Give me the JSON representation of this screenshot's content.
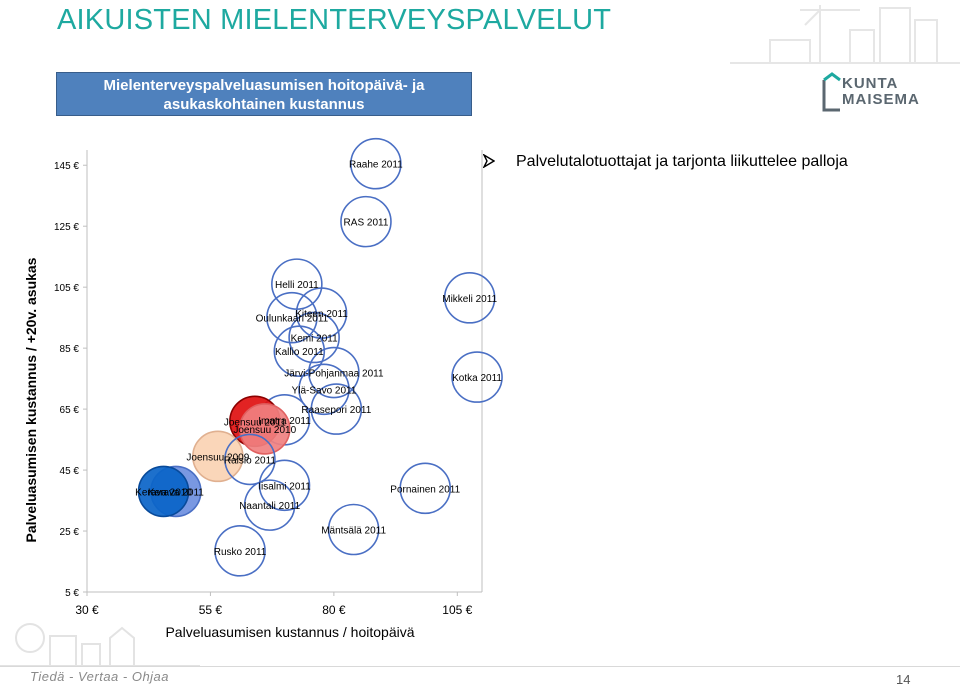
{
  "title": "AIKUISTEN MIELENTERVEYSPALVELUT",
  "subtitle": {
    "line1": "Mielenterveyspalveluasumisen hoitopäivä- ja",
    "line2": "asukaskohtainen kustannus"
  },
  "logo": {
    "line1": "KUNTA",
    "line2": "MAISEMA"
  },
  "bullet": {
    "icon": "arrow-bullet-icon",
    "text": "Palvelutalotuottajat ja tarjonta liikuttelee palloja"
  },
  "footer": {
    "text": "Tiedä - Vertaa - Ohjaa",
    "page": "14"
  },
  "colors": {
    "title": "#1ea9a0",
    "subtitle_bg": "#4f81bd",
    "bubble_outline": "#4a6fc4",
    "bubble_red": "#e01010",
    "bubble_pink": "#f08080",
    "bubble_peach": "#fad3b3",
    "bubble_blue": "#0a64c8",
    "bubble_lightblue": "#6e8fe0"
  },
  "chart_data": {
    "type": "scatter",
    "title": "",
    "xlabel": "Palveluasumisen kustannus / hoitopäivä",
    "ylabel": "Palveluasumisen kustannus / +20v. asukas",
    "xlim": [
      30,
      110
    ],
    "ylim": [
      5,
      150
    ],
    "x_ticks": [
      30,
      55,
      80,
      105
    ],
    "x_tick_labels": [
      "30 €",
      "55 €",
      "80 €",
      "105 €"
    ],
    "y_ticks": [
      5,
      25,
      45,
      65,
      85,
      105,
      125,
      145
    ],
    "y_tick_labels": [
      "5 €",
      "25 €",
      "45 €",
      "65 €",
      "85 €",
      "105 €",
      "125 €",
      "145 €"
    ],
    "grid": false,
    "legend": "none",
    "points": [
      {
        "label": "Raahe 2011",
        "x": 88.5,
        "y": 145.5,
        "style": "outline"
      },
      {
        "label": "RAS 2011",
        "x": 86.5,
        "y": 126.5,
        "style": "outline"
      },
      {
        "label": "Helli 2011",
        "x": 72.5,
        "y": 106.0,
        "style": "outline"
      },
      {
        "label": "Mikkeli 2011",
        "x": 107.5,
        "y": 101.5,
        "style": "outline"
      },
      {
        "label": "Kiteen 2011",
        "x": 77.5,
        "y": 96.5,
        "style": "outline"
      },
      {
        "label": "Oulunkaari 2011",
        "x": 71.5,
        "y": 95.0,
        "style": "outline"
      },
      {
        "label": "Kemi 2011",
        "x": 76.0,
        "y": 88.5,
        "style": "outline"
      },
      {
        "label": "Kallio 2011",
        "x": 73.0,
        "y": 84.0,
        "style": "outline"
      },
      {
        "label": "Järvi-Pohjanmaa 2011",
        "x": 80.0,
        "y": 77.0,
        "style": "outline"
      },
      {
        "label": "Kotka 2011",
        "x": 109.0,
        "y": 75.5,
        "style": "outline"
      },
      {
        "label": "Ylä-Savo 2011",
        "x": 78.0,
        "y": 71.5,
        "style": "outline"
      },
      {
        "label": "Raasepori 2011",
        "x": 80.5,
        "y": 65.0,
        "style": "outline"
      },
      {
        "label": "Imatra 2011",
        "x": 70.0,
        "y": 61.5,
        "style": "outline"
      },
      {
        "label": "Joensuu 2011",
        "x": 64.0,
        "y": 61.0,
        "style": "red"
      },
      {
        "label": "Joensuu 2010",
        "x": 66.0,
        "y": 58.5,
        "style": "pink"
      },
      {
        "label": "Joensuu 2009",
        "x": 56.5,
        "y": 49.5,
        "style": "peach"
      },
      {
        "label": "Raisio 2011",
        "x": 63.0,
        "y": 48.5,
        "style": "outline"
      },
      {
        "label": "Iisalmi 2011",
        "x": 70.0,
        "y": 40.0,
        "style": "outline"
      },
      {
        "label": "Pornainen 2011",
        "x": 98.5,
        "y": 39.0,
        "style": "outline"
      },
      {
        "label": "Kerava 2011",
        "x": 48.0,
        "y": 38.0,
        "style": "lightblue"
      },
      {
        "label": "Kerava 2010",
        "x": 45.5,
        "y": 38.0,
        "style": "blue"
      },
      {
        "label": "Naantali 2011",
        "x": 67.0,
        "y": 33.5,
        "style": "outline"
      },
      {
        "label": "Mäntsälä 2011",
        "x": 84.0,
        "y": 25.5,
        "style": "outline"
      },
      {
        "label": "Rusko 2011",
        "x": 61.0,
        "y": 18.5,
        "style": "outline"
      }
    ]
  }
}
